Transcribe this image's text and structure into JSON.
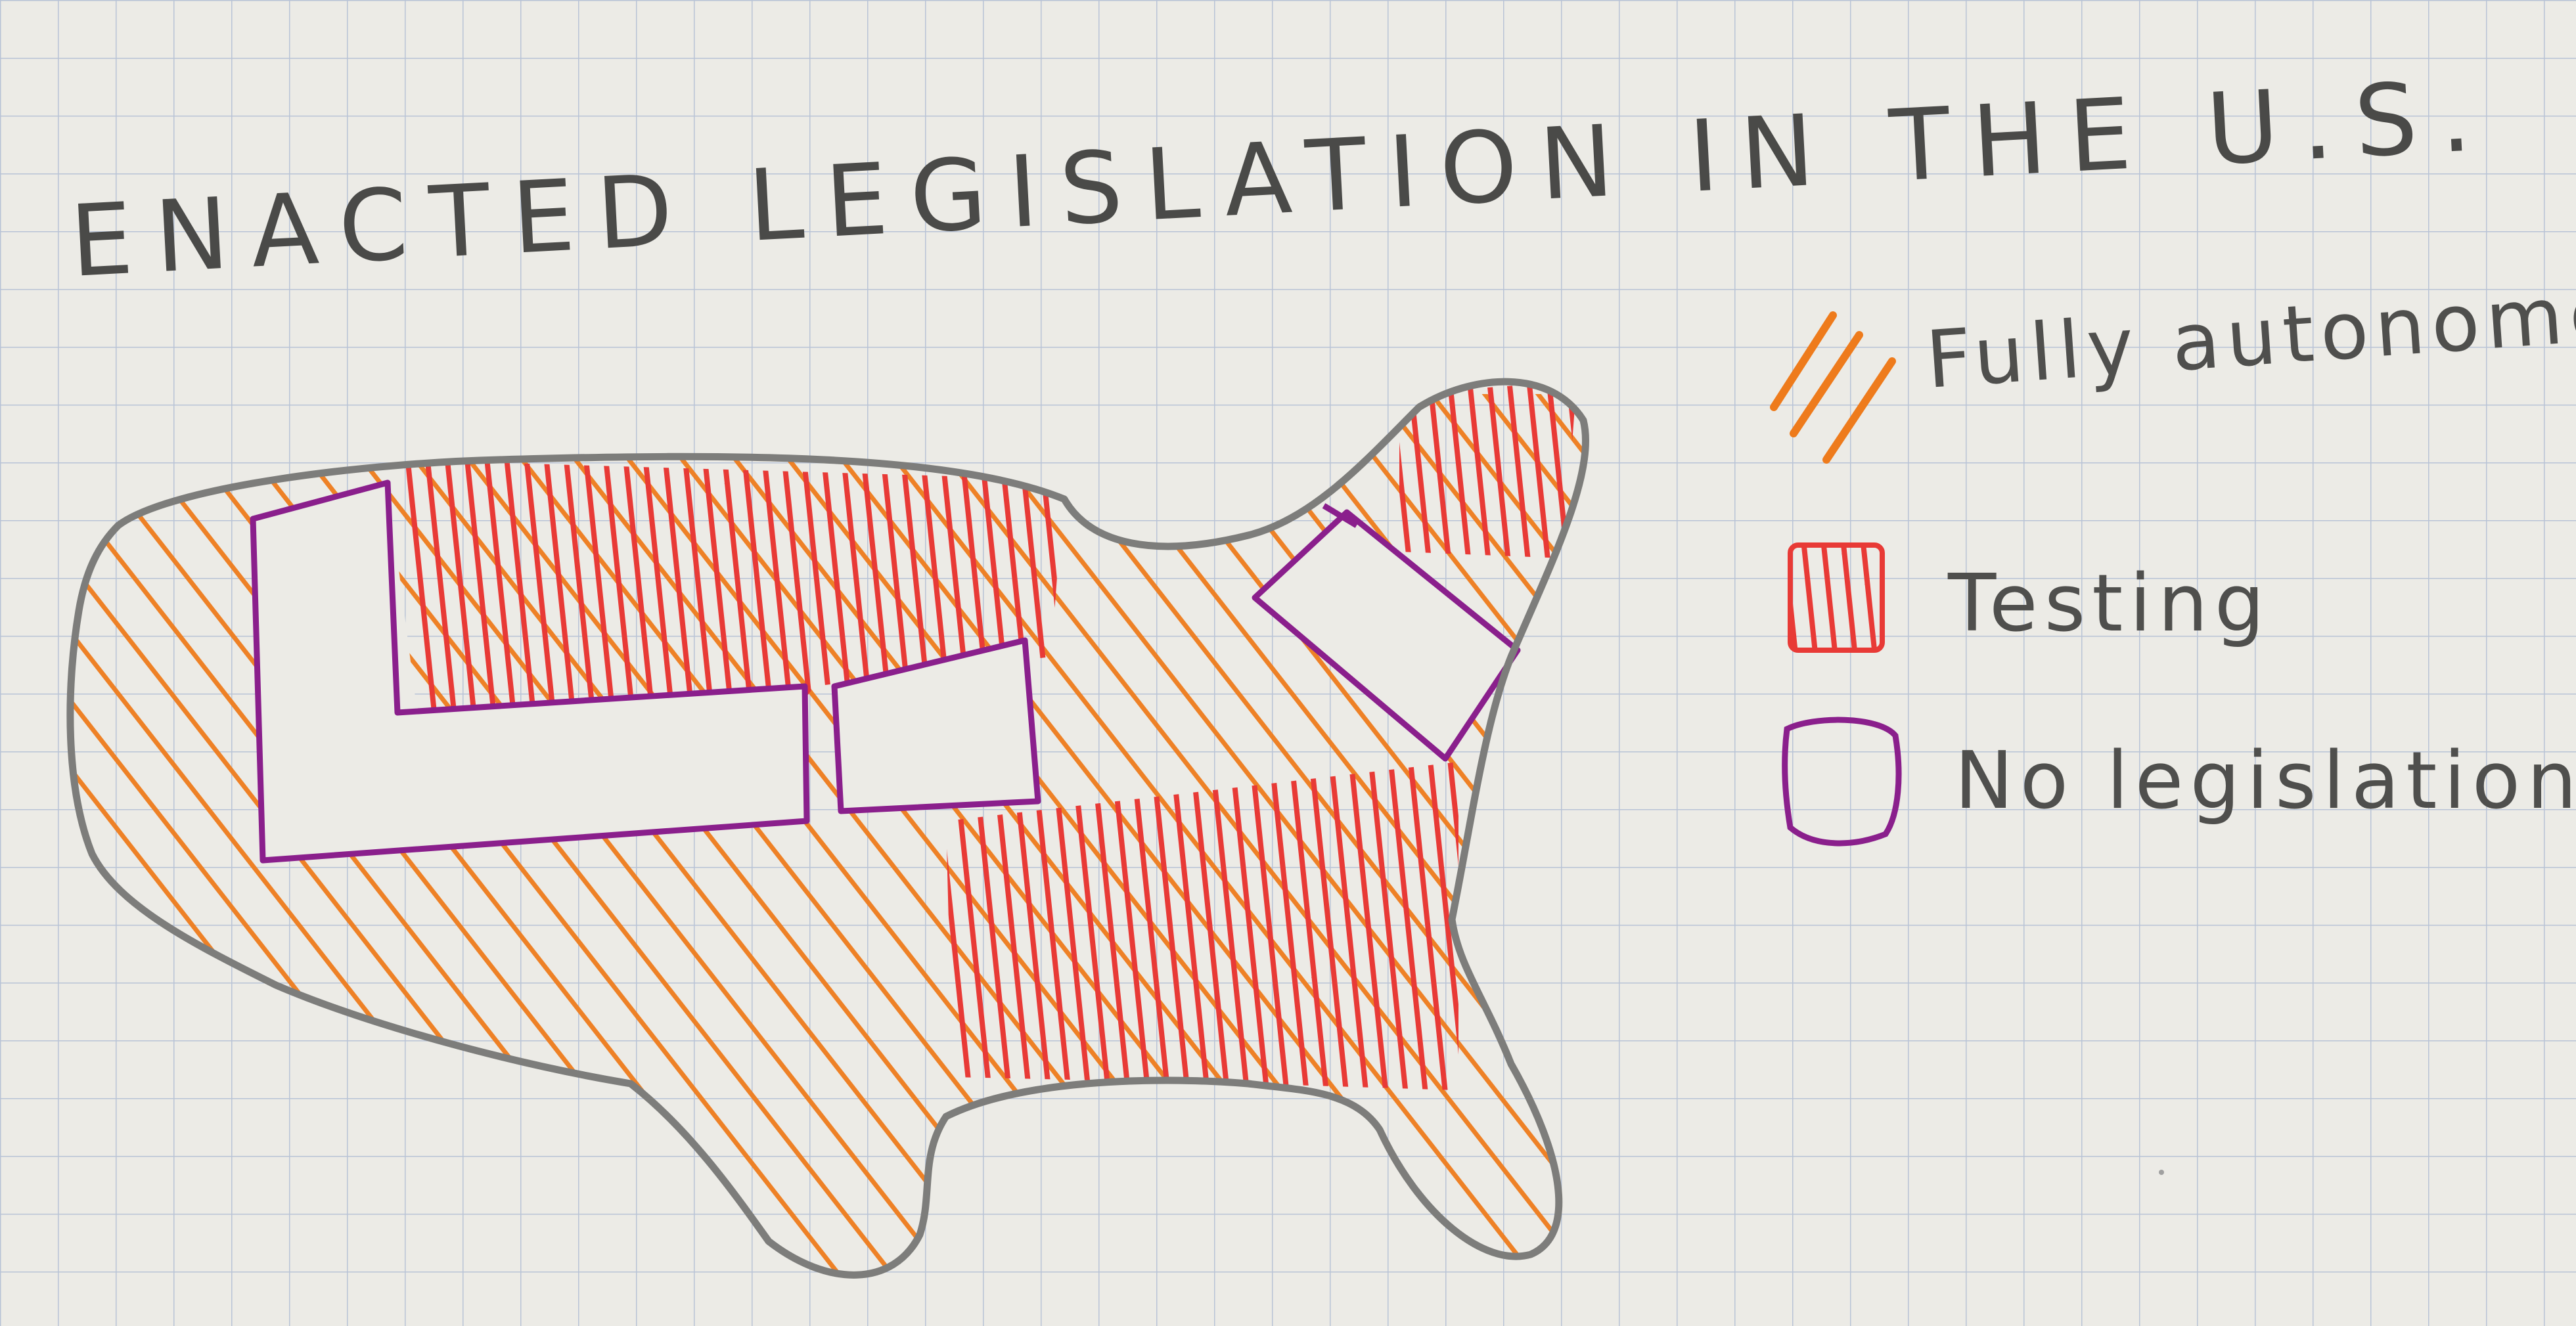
{
  "title": "ENACTED LEGISLATION IN THE U.S.",
  "legend": [
    {
      "label": "Fully autonomous",
      "swatch": "hatched",
      "color": "#ee7b1c"
    },
    {
      "label": "Testing",
      "swatch": "filled",
      "color": "#e83a36"
    },
    {
      "label": "No legislation",
      "swatch": "outline",
      "color": "#8a1f8c"
    }
  ],
  "colors": {
    "paper": "#ecebe6",
    "grid": "#b8c3d6",
    "outline": "#7d7d7b",
    "fully_autonomous": "#ee7b1c",
    "testing": "#e83a36",
    "no_legislation": "#8a1f8c",
    "ink": "#4a4a48"
  }
}
